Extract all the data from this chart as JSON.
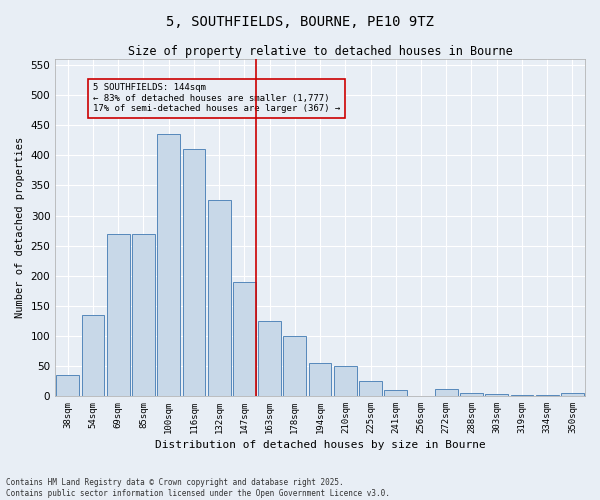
{
  "title": "5, SOUTHFIELDS, BOURNE, PE10 9TZ",
  "subtitle": "Size of property relative to detached houses in Bourne",
  "xlabel": "Distribution of detached houses by size in Bourne",
  "ylabel": "Number of detached properties",
  "categories": [
    "38sqm",
    "54sqm",
    "69sqm",
    "85sqm",
    "100sqm",
    "116sqm",
    "132sqm",
    "147sqm",
    "163sqm",
    "178sqm",
    "194sqm",
    "210sqm",
    "225sqm",
    "241sqm",
    "256sqm",
    "272sqm",
    "288sqm",
    "303sqm",
    "319sqm",
    "334sqm",
    "350sqm"
  ],
  "values": [
    35,
    135,
    270,
    270,
    435,
    410,
    325,
    190,
    125,
    100,
    55,
    50,
    25,
    10,
    0,
    12,
    5,
    3,
    2,
    1,
    5
  ],
  "bar_color": "#c8d8e8",
  "bar_edge_color": "#5588bb",
  "property_index": 7,
  "annotation_line1": "5 SOUTHFIELDS: 144sqm",
  "annotation_line2": "← 83% of detached houses are smaller (1,777)",
  "annotation_line3": "17% of semi-detached houses are larger (367) →",
  "vline_color": "#cc0000",
  "background_color": "#e8eef5",
  "ylim": [
    0,
    560
  ],
  "yticks": [
    0,
    50,
    100,
    150,
    200,
    250,
    300,
    350,
    400,
    450,
    500,
    550
  ],
  "footer_line1": "Contains HM Land Registry data © Crown copyright and database right 2025.",
  "footer_line2": "Contains public sector information licensed under the Open Government Licence v3.0."
}
